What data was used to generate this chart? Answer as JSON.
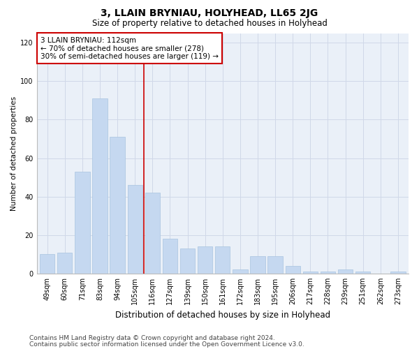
{
  "title": "3, LLAIN BRYNIAU, HOLYHEAD, LL65 2JG",
  "subtitle": "Size of property relative to detached houses in Holyhead",
  "xlabel": "Distribution of detached houses by size in Holyhead",
  "ylabel": "Number of detached properties",
  "categories": [
    "49sqm",
    "60sqm",
    "71sqm",
    "83sqm",
    "94sqm",
    "105sqm",
    "116sqm",
    "127sqm",
    "139sqm",
    "150sqm",
    "161sqm",
    "172sqm",
    "183sqm",
    "195sqm",
    "206sqm",
    "217sqm",
    "228sqm",
    "239sqm",
    "251sqm",
    "262sqm",
    "273sqm"
  ],
  "values": [
    10,
    11,
    53,
    91,
    71,
    46,
    42,
    18,
    13,
    14,
    14,
    2,
    9,
    9,
    4,
    1,
    1,
    2,
    1,
    0,
    1
  ],
  "bar_color": "#c5d8f0",
  "bar_edge_color": "#a8c4e0",
  "vline_x_index": 6,
  "vline_color": "#cc0000",
  "annotation_text": "3 LLAIN BRYNIAU: 112sqm\n← 70% of detached houses are smaller (278)\n30% of semi-detached houses are larger (119) →",
  "annotation_box_color": "white",
  "annotation_box_edge_color": "#cc0000",
  "ylim": [
    0,
    125
  ],
  "yticks": [
    0,
    20,
    40,
    60,
    80,
    100,
    120
  ],
  "grid_color": "#d0d8e8",
  "background_color": "#eaf0f8",
  "footnote1": "Contains HM Land Registry data © Crown copyright and database right 2024.",
  "footnote2": "Contains public sector information licensed under the Open Government Licence v3.0.",
  "title_fontsize": 10,
  "subtitle_fontsize": 8.5,
  "xlabel_fontsize": 8.5,
  "ylabel_fontsize": 7.5,
  "tick_fontsize": 7,
  "annotation_fontsize": 7.5,
  "footnote_fontsize": 6.5
}
